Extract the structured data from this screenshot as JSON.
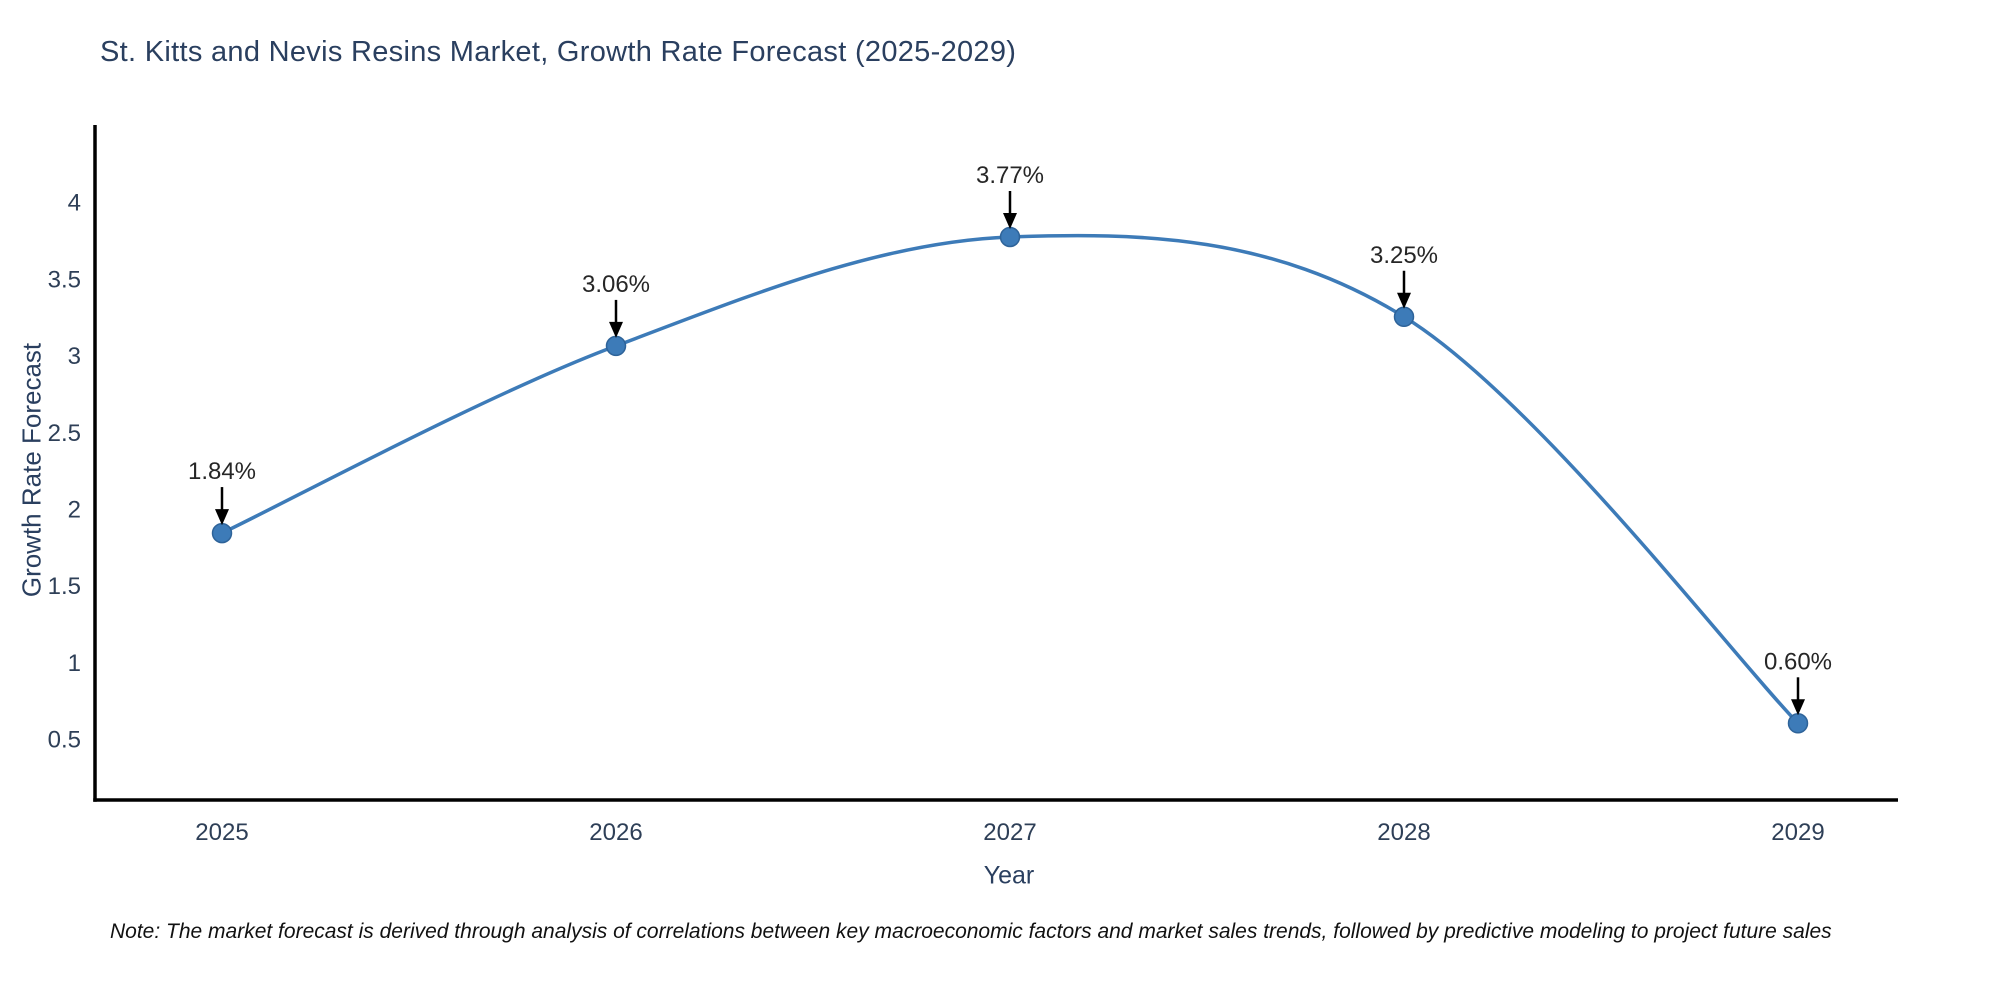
{
  "title": "St. Kitts and Nevis Resins Market, Growth Rate Forecast (2025-2029)",
  "note": "Note: The market forecast is derived through analysis of correlations between key macroeconomic factors and market sales trends, followed by predictive modeling to project future sales",
  "chart_data": {
    "type": "line",
    "title": "St. Kitts and Nevis Resins Market, Growth Rate Forecast (2025-2029)",
    "x": [
      2025,
      2026,
      2027,
      2028,
      2029
    ],
    "values": [
      1.84,
      3.06,
      3.77,
      3.25,
      0.6
    ],
    "point_labels": [
      "1.84%",
      "3.06%",
      "3.77%",
      "3.25%",
      "0.60%"
    ],
    "xlabel": "Year",
    "ylabel": "Growth Rate Forecast",
    "ylim": [
      0.1,
      4.5
    ],
    "yticks": [
      0.5,
      1,
      1.5,
      2,
      2.5,
      3,
      3.5,
      4
    ],
    "grid": false,
    "legend_position": "none",
    "line_shape": "spline",
    "line_color": "#3d7bb8",
    "marker_color": "#3d7bb8",
    "marker_edge_color": "#2e6399",
    "label_arrow_color": "#000000",
    "axis_color": "#000000",
    "text_color": "#2a3f5f"
  }
}
